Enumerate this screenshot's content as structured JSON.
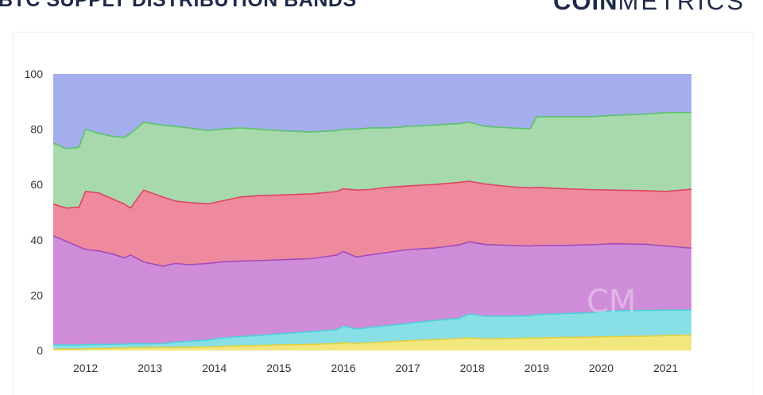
{
  "header": {
    "title": "BTC SUPPLY DISTRIBUTION BANDS",
    "brand_bold": "COIN",
    "brand_light": "METRICS"
  },
  "watermark": "CM",
  "chart_data": {
    "type": "area",
    "stacking": "percent",
    "x_ticks": [
      "2012",
      "2013",
      "2014",
      "2015",
      "2016",
      "2017",
      "2018",
      "2019",
      "2020",
      "2021"
    ],
    "y_ticks": [
      "0",
      "20",
      "40",
      "60",
      "80",
      "100"
    ],
    "ylim": [
      0,
      100
    ],
    "xlim": [
      2011.5,
      2021.4
    ],
    "grid": false,
    "legend": "none",
    "x": [
      2011.5,
      2011.7,
      2011.9,
      2012.0,
      2012.2,
      2012.4,
      2012.6,
      2012.7,
      2012.9,
      2013.2,
      2013.4,
      2013.6,
      2013.9,
      2014.1,
      2014.4,
      2014.7,
      2015.0,
      2015.5,
      2015.9,
      2016.0,
      2016.2,
      2016.4,
      2016.7,
      2017.0,
      2017.4,
      2017.8,
      2017.95,
      2018.2,
      2018.6,
      2018.9,
      2019.0,
      2019.4,
      2019.8,
      2020.2,
      2020.7,
      2021.0,
      2021.4
    ],
    "cumulative": {
      "b1": [
        0.5,
        0.5,
        0.5,
        0.6,
        0.7,
        0.8,
        0.9,
        1.0,
        1.0,
        1.1,
        1.1,
        1.2,
        1.3,
        1.5,
        1.7,
        1.8,
        2.0,
        2.2,
        2.5,
        2.8,
        2.6,
        2.8,
        3.2,
        3.5,
        3.9,
        4.3,
        4.6,
        4.2,
        4.3,
        4.5,
        4.5,
        4.7,
        4.8,
        5.0,
        5.2,
        5.4,
        5.6
      ],
      "b2": [
        2.0,
        2.0,
        2.0,
        2.1,
        2.2,
        2.2,
        2.3,
        2.4,
        2.4,
        2.5,
        3.0,
        3.3,
        3.8,
        4.5,
        5.0,
        5.5,
        6.0,
        6.8,
        7.5,
        8.8,
        7.8,
        8.3,
        9.0,
        9.8,
        10.8,
        11.6,
        13.2,
        12.4,
        12.4,
        12.6,
        13.0,
        13.3,
        13.6,
        14.3,
        14.5,
        14.6,
        14.6
      ],
      "b3": [
        41.5,
        39.5,
        37.5,
        36.5,
        36.0,
        35.0,
        33.5,
        34.5,
        32.0,
        30.5,
        31.5,
        31.0,
        31.5,
        32.0,
        32.3,
        32.5,
        32.8,
        33.2,
        34.5,
        35.8,
        33.8,
        34.5,
        35.5,
        36.5,
        37.0,
        38.2,
        39.3,
        38.3,
        38.0,
        37.8,
        38.0,
        38.0,
        38.2,
        38.6,
        38.4,
        37.8,
        37.0
      ],
      "b4": [
        53.0,
        51.5,
        51.8,
        57.5,
        57.0,
        55.0,
        53.0,
        51.5,
        58.0,
        55.5,
        54.0,
        53.5,
        53.0,
        54.0,
        55.5,
        56.0,
        56.2,
        56.6,
        57.5,
        58.5,
        58.0,
        58.2,
        59.0,
        59.5,
        60.0,
        60.8,
        61.2,
        60.2,
        59.2,
        58.8,
        59.0,
        58.5,
        58.2,
        58.0,
        57.8,
        57.5,
        58.3
      ],
      "b5": [
        75.0,
        73.0,
        73.5,
        80.0,
        78.5,
        77.5,
        77.0,
        78.5,
        82.5,
        81.5,
        81.0,
        80.5,
        79.5,
        80.0,
        80.5,
        80.0,
        79.5,
        79.0,
        79.5,
        80.0,
        80.0,
        80.5,
        80.5,
        81.0,
        81.5,
        82.0,
        82.5,
        81.0,
        80.5,
        80.2,
        84.5,
        84.5,
        84.5,
        85.0,
        85.5,
        86.0,
        86.0
      ],
      "b6": [
        100,
        100,
        100,
        100,
        100,
        100,
        100,
        100,
        100,
        100,
        100,
        100,
        100,
        100,
        100,
        100,
        100,
        100,
        100,
        100,
        100,
        100,
        100,
        100,
        100,
        100,
        100,
        100,
        100,
        100,
        100,
        100,
        100,
        100,
        100,
        100,
        100
      ]
    },
    "colors": {
      "b1": "#f1e77f",
      "b2": "#88e0e6",
      "b3": "#cf8dd9",
      "b4": "#ef8a9e",
      "b5": "#a7d9ad",
      "b6": "#a4aeec"
    },
    "line_colors": {
      "b1": "#e4cf3c",
      "b2": "#4cd2dc",
      "b3": "#a24cbc",
      "b4": "#e0445f",
      "b5": "#5cc36a",
      "b6": "#7f8de0"
    }
  }
}
